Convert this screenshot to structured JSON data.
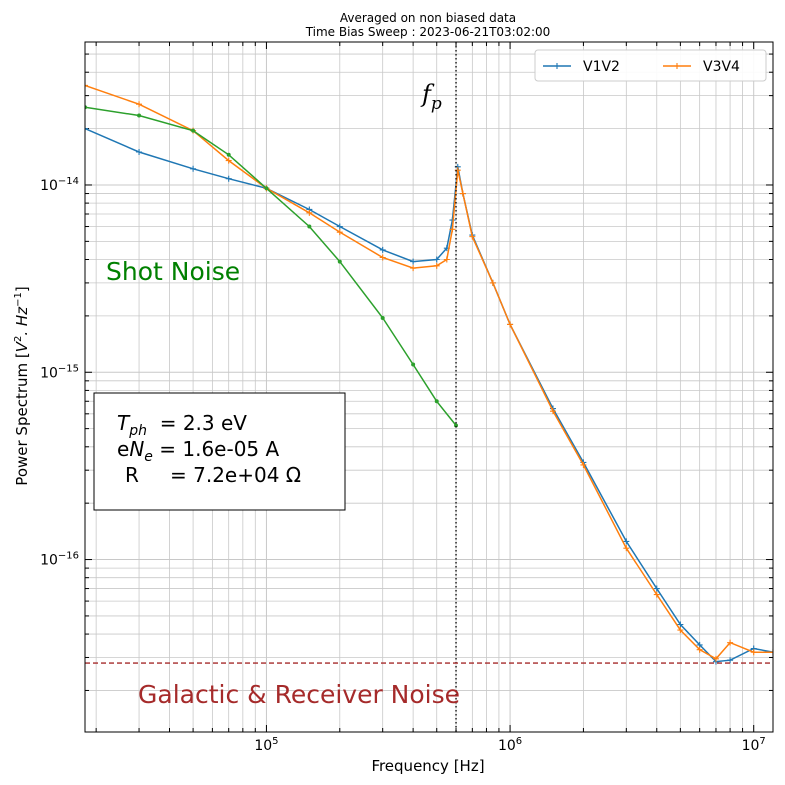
{
  "chart_data": {
    "type": "line",
    "title_line1": "Averaged on non biased data",
    "title_line2": "Time Bias Sweep : 2023-06-21T03:02:00",
    "xlabel": "Frequency [Hz]",
    "ylabel_prefix": "Power Spectrum [",
    "ylabel_suffix": "]",
    "x_scale": "log",
    "y_scale": "log",
    "xlim": [
      18000,
      12000000
    ],
    "ylim": [
      1.2e-17,
      5.8e-14
    ],
    "x_ticks": [
      {
        "value": 100000,
        "base": "10",
        "exp": "5"
      },
      {
        "value": 1000000,
        "base": "10",
        "exp": "6"
      },
      {
        "value": 10000000,
        "base": "10",
        "exp": "7"
      }
    ],
    "y_ticks": [
      {
        "value": 1e-16,
        "base": "10",
        "exp": "−16"
      },
      {
        "value": 1e-15,
        "base": "10",
        "exp": "−15"
      },
      {
        "value": 1e-14,
        "base": "10",
        "exp": "−14"
      }
    ],
    "grid": true,
    "legend_position": "top-right",
    "series": [
      {
        "name": "V1V2",
        "color": "#1f77b4",
        "marker": "plus",
        "points": [
          [
            18000,
            2e-14
          ],
          [
            30000,
            1.5e-14
          ],
          [
            50000,
            1.22e-14
          ],
          [
            70000,
            1.08e-14
          ],
          [
            100000,
            9.6e-15
          ],
          [
            150000,
            7.4e-15
          ],
          [
            200000,
            6e-15
          ],
          [
            300000,
            4.5e-15
          ],
          [
            400000,
            3.9e-15
          ],
          [
            500000,
            4e-15
          ],
          [
            550000,
            4.6e-15
          ],
          [
            580000,
            6.5e-15
          ],
          [
            610000,
            1.25e-14
          ],
          [
            640000,
            9e-15
          ],
          [
            700000,
            5.4e-15
          ],
          [
            850000,
            3e-15
          ],
          [
            1000000,
            1.8e-15
          ],
          [
            1500000,
            6.4e-16
          ],
          [
            2000000,
            3.3e-16
          ],
          [
            3000000,
            1.25e-16
          ],
          [
            4000000,
            7e-17
          ],
          [
            5000000,
            4.5e-17
          ],
          [
            6000000,
            3.5e-17
          ],
          [
            7000000,
            2.85e-17
          ],
          [
            8000000,
            2.9e-17
          ],
          [
            10000000,
            3.35e-17
          ],
          [
            12000000,
            3.2e-17
          ]
        ]
      },
      {
        "name": "V3V4",
        "color": "#ff7f0e",
        "marker": "plus",
        "points": [
          [
            18000,
            3.4e-14
          ],
          [
            30000,
            2.7e-14
          ],
          [
            50000,
            1.95e-14
          ],
          [
            70000,
            1.35e-14
          ],
          [
            100000,
            9.6e-15
          ],
          [
            150000,
            7.1e-15
          ],
          [
            200000,
            5.6e-15
          ],
          [
            300000,
            4.1e-15
          ],
          [
            400000,
            3.6e-15
          ],
          [
            500000,
            3.7e-15
          ],
          [
            550000,
            4e-15
          ],
          [
            580000,
            5.8e-15
          ],
          [
            610000,
            1.2e-14
          ],
          [
            640000,
            9e-15
          ],
          [
            700000,
            5.3e-15
          ],
          [
            850000,
            3e-15
          ],
          [
            1000000,
            1.8e-15
          ],
          [
            1500000,
            6.2e-16
          ],
          [
            2000000,
            3.2e-16
          ],
          [
            3000000,
            1.15e-16
          ],
          [
            4000000,
            6.5e-17
          ],
          [
            5000000,
            4.2e-17
          ],
          [
            6000000,
            3.3e-17
          ],
          [
            7000000,
            2.95e-17
          ],
          [
            8000000,
            3.6e-17
          ],
          [
            10000000,
            3.2e-17
          ],
          [
            12000000,
            3.2e-17
          ]
        ]
      },
      {
        "name": "",
        "color": "#2ca02c",
        "marker": "dot",
        "points": [
          [
            18000,
            2.6e-14
          ],
          [
            30000,
            2.35e-14
          ],
          [
            50000,
            1.95e-14
          ],
          [
            70000,
            1.45e-14
          ],
          [
            100000,
            9.6e-15
          ],
          [
            150000,
            6e-15
          ],
          [
            200000,
            3.9e-15
          ],
          [
            300000,
            1.95e-15
          ],
          [
            400000,
            1.1e-15
          ],
          [
            500000,
            7e-16
          ],
          [
            600000,
            5.2e-16
          ]
        ]
      }
    ],
    "reference_lines": [
      {
        "orientation": "vertical",
        "x": 600000,
        "style": "dotted",
        "color": "#000000",
        "label_base": "f",
        "label_sub": "p"
      },
      {
        "orientation": "horizontal",
        "y": 2.8e-17,
        "style": "dashed",
        "color": "#a52a2a"
      }
    ],
    "annotations": {
      "shot_noise": {
        "text": "Shot Noise",
        "color": "#008000"
      },
      "galactic_noise": {
        "text": "Galactic & Receiver Noise",
        "color": "#a52a2a"
      }
    },
    "info_box": {
      "t_ph_base": "T",
      "t_ph_sub": "ph",
      "t_ph_value": "  = 2.3 eV",
      "ene_prefix": "e",
      "ene_base": "N",
      "ene_sub": "e",
      "ene_value": " = 1.6e-05 A",
      "r_label": "R",
      "r_value": "= 7.2e+04 Ω"
    }
  }
}
